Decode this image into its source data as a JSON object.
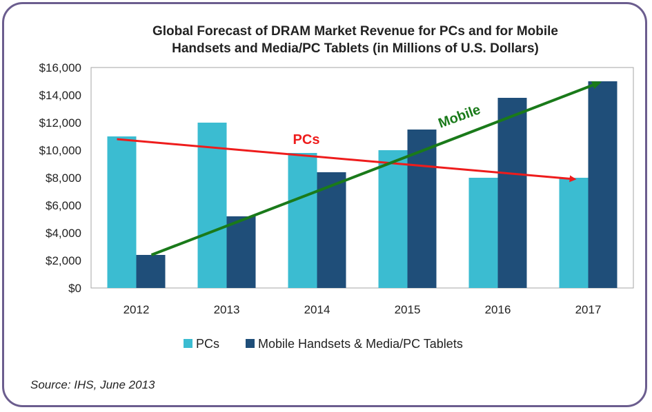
{
  "chart_data": {
    "type": "bar",
    "title_lines": [
      "Global Forecast of DRAM Market Revenue for PCs and for Mobile",
      "Handsets and Media/PC Tablets (in Millions of U.S. Dollars)"
    ],
    "categories": [
      "2012",
      "2013",
      "2014",
      "2015",
      "2016",
      "2017"
    ],
    "series": [
      {
        "name": "PCs",
        "color": "#3bbcd1",
        "values": [
          11000,
          12000,
          9800,
          10000,
          8000,
          8000
        ]
      },
      {
        "name": "Mobile Handsets & Media/PC Tablets",
        "color": "#1f4e79",
        "values": [
          2400,
          5200,
          8400,
          11500,
          13800,
          15000
        ]
      }
    ],
    "ylim": [
      0,
      16000
    ],
    "y_ticks": [
      0,
      2000,
      4000,
      6000,
      8000,
      10000,
      12000,
      14000,
      16000
    ],
    "y_tick_labels": [
      "$0",
      "$2,000",
      "$4,000",
      "$6,000",
      "$8,000",
      "$10,000",
      "$12,000",
      "$14,000",
      "$16,000"
    ],
    "legend_position": "bottom",
    "grid": false,
    "annotations": [
      {
        "label": "PCs",
        "color": "#ee1c1c",
        "from": {
          "x": "2012",
          "y": 10800
        },
        "to": {
          "x": "2017",
          "y": 7900
        }
      },
      {
        "label": "Mobile",
        "color": "#1a7a1a",
        "from": {
          "x": "2012",
          "y": 2400
        },
        "to": {
          "x": "2017",
          "y": 14900
        }
      }
    ]
  },
  "source": "Source: IHS, June 2013"
}
